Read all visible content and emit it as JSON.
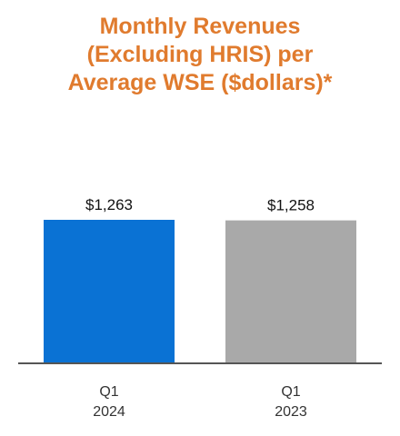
{
  "chart_data": {
    "type": "bar",
    "title_lines": [
      "Monthly Revenues",
      "(Excluding HRIS) per",
      "Average WSE ($dollars)*"
    ],
    "categories": [
      [
        "Q1",
        "2024"
      ],
      [
        "Q1",
        "2023"
      ]
    ],
    "values": [
      1263,
      1258
    ],
    "value_labels": [
      "$1,263",
      "$1,258"
    ],
    "bar_colors": [
      "#0a72d4",
      "#a9a9a9"
    ],
    "title_color": "#e07b2e",
    "xlabel": "",
    "ylabel": "",
    "grid": false,
    "legend": "none"
  }
}
